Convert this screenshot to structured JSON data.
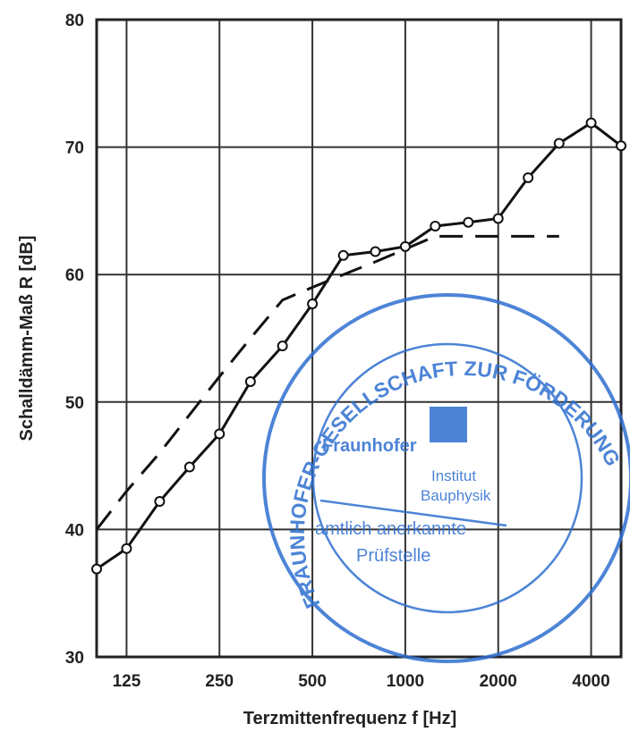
{
  "chart_data": {
    "type": "line",
    "title": "",
    "xlabel": "Terzmittenfrequenz f [Hz]",
    "ylabel": "Schalldämm-Maß R [dB]",
    "xscale": "log",
    "x_tick_labels": [
      "125",
      "250",
      "500",
      "1000",
      "2000",
      "4000"
    ],
    "x_ticks": [
      125,
      250,
      500,
      1000,
      2000,
      4000
    ],
    "y_tick_labels": [
      "30",
      "40",
      "50",
      "60",
      "70",
      "80"
    ],
    "y_ticks": [
      30,
      40,
      50,
      60,
      70,
      80
    ],
    "xlim": [
      100,
      5000
    ],
    "ylim": [
      30,
      80
    ],
    "grid": true,
    "legend": "none",
    "series": [
      {
        "style": "solid-with-circle-markers",
        "x": [
          100,
          125,
          160,
          200,
          250,
          315,
          400,
          500,
          630,
          800,
          1000,
          1250,
          1600,
          2000,
          2500,
          3150,
          4000,
          5000
        ],
        "y": [
          36.9,
          38.5,
          42.2,
          44.9,
          47.5,
          51.6,
          54.4,
          57.7,
          61.5,
          61.8,
          62.2,
          63.8,
          64.1,
          64.4,
          67.6,
          70.3,
          71.9,
          70.1
        ]
      },
      {
        "style": "dashed",
        "x": [
          100,
          125,
          160,
          200,
          250,
          315,
          400,
          500,
          630,
          800,
          1000,
          1250,
          1600,
          2000,
          2500,
          3150
        ],
        "y": [
          40,
          43,
          46,
          49,
          52,
          55,
          58,
          59,
          60,
          61,
          62,
          63,
          63,
          63,
          63,
          63
        ]
      }
    ]
  },
  "stamp": {
    "ring_text": "FRAUNHOFER-GESELLSCHAFT ZUR FÖRDERUNG DER ANGEWANDTEN FORSCHUNG e.V.",
    "org": "Fraunhofer",
    "institut": "Institut",
    "bauphysik": "Bauphysik",
    "line1": "amtlich anerkannte",
    "line2": "Prüfstelle",
    "color": "#2f6fd0"
  }
}
